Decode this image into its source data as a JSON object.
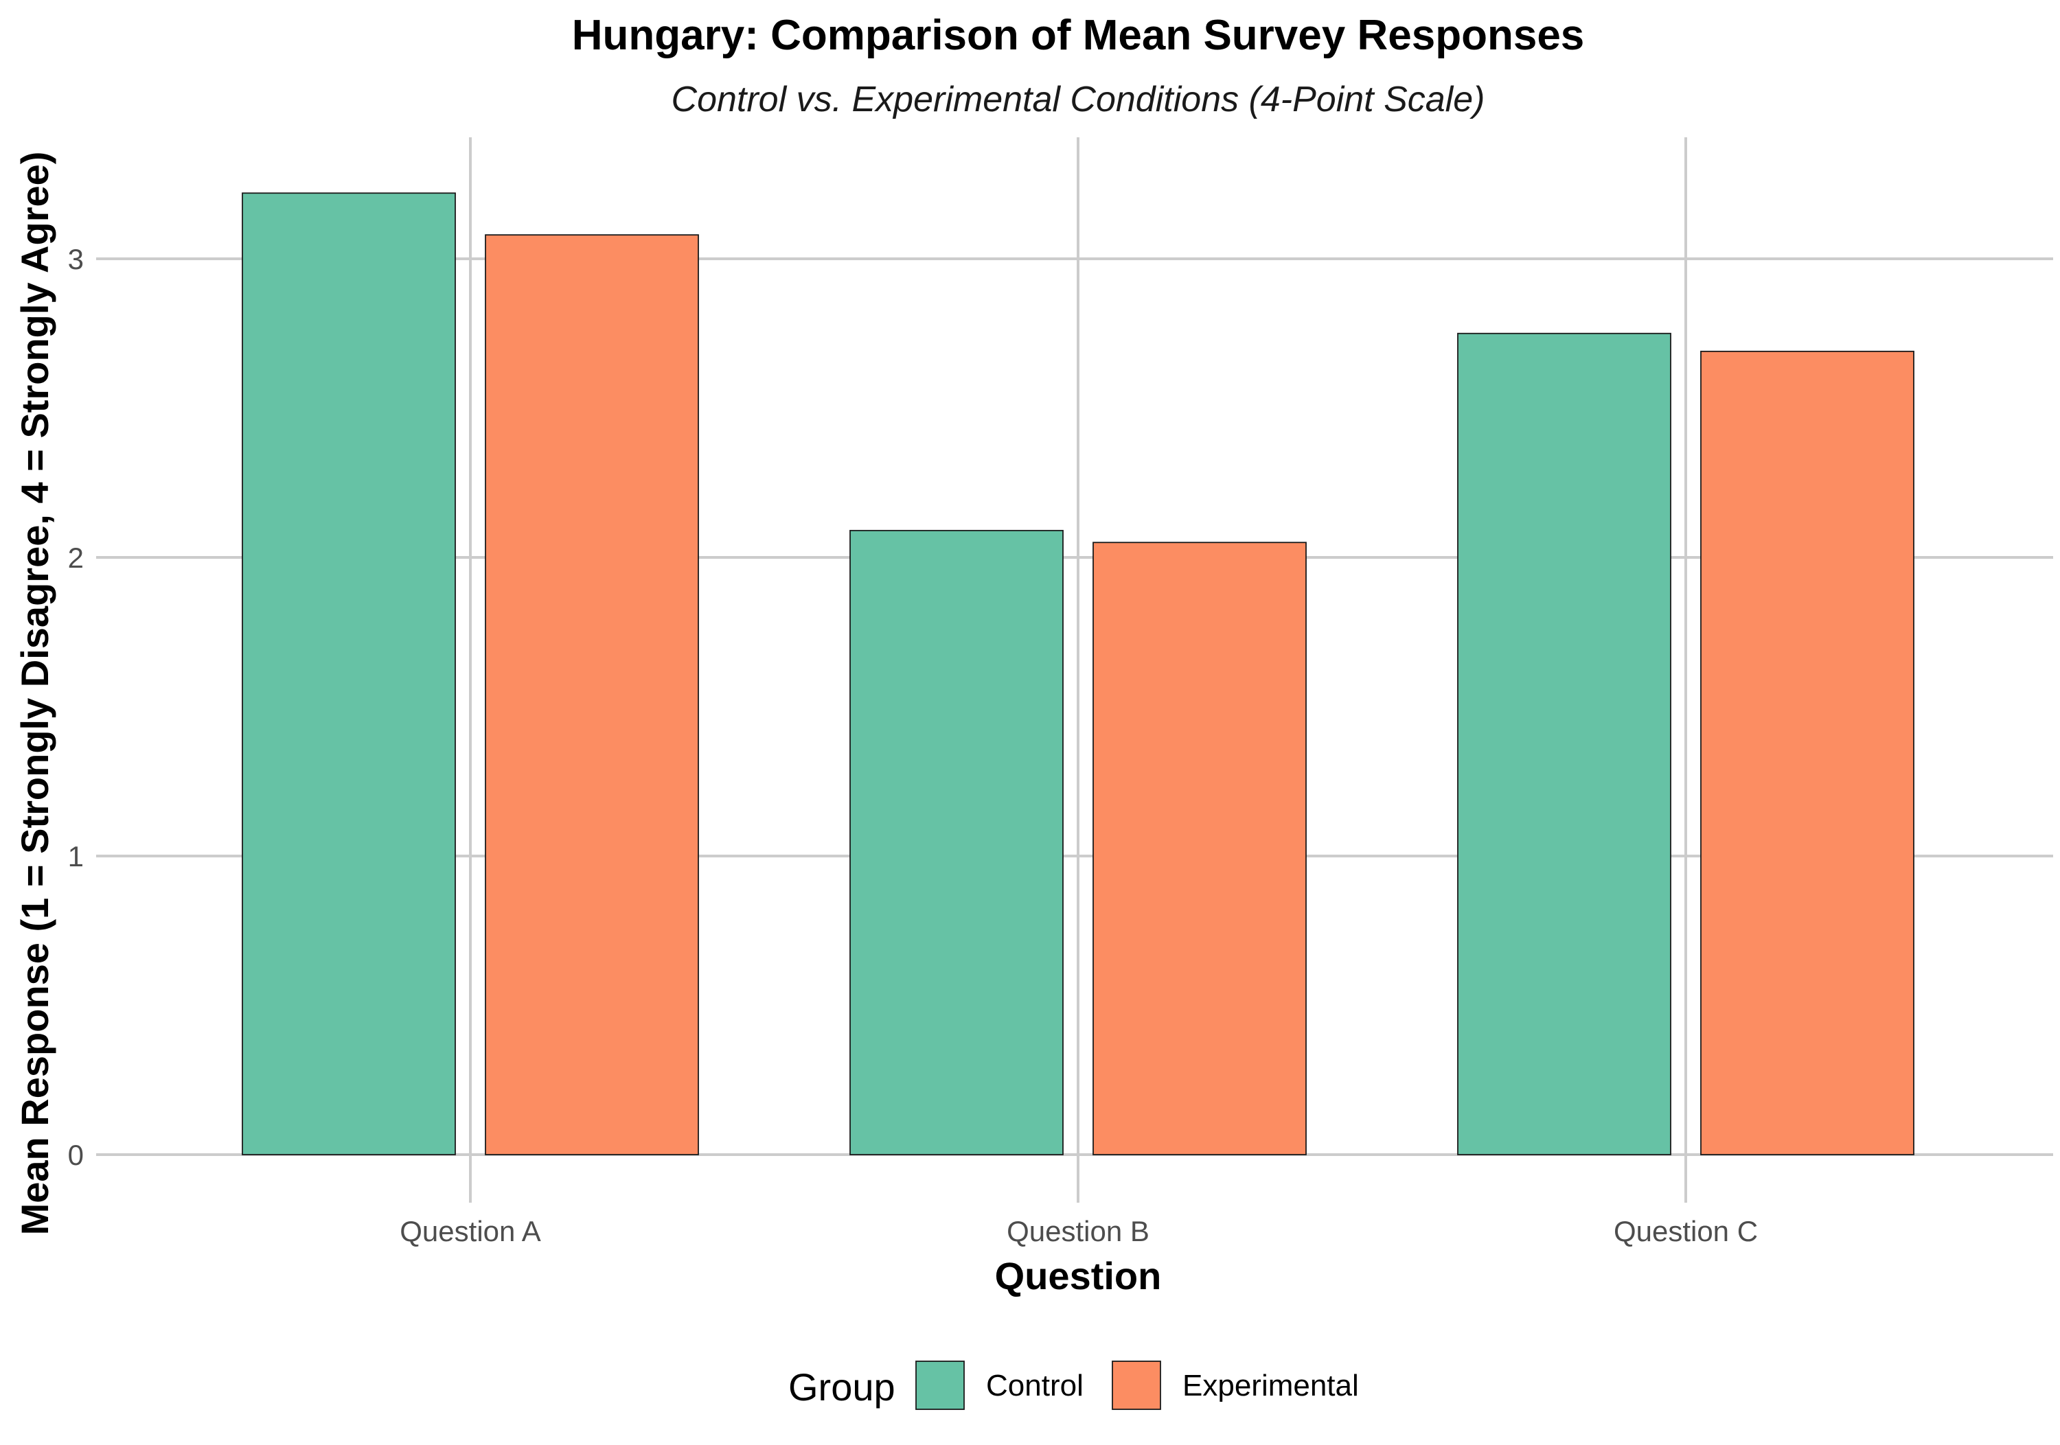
{
  "chart_data": {
    "type": "bar",
    "title": "Hungary: Comparison of Mean Survey Responses",
    "subtitle": "Control vs. Experimental Conditions (4-Point Scale)",
    "xlabel": "Question",
    "ylabel": "Mean Response (1 = Strongly Disagree, 4 = Strongly Agree)",
    "categories": [
      "Question A",
      "Question B",
      "Question C"
    ],
    "series": [
      {
        "name": "Control",
        "color": "#66c2a5",
        "values": [
          3.22,
          2.09,
          2.75
        ]
      },
      {
        "name": "Experimental",
        "color": "#fc8d62",
        "values": [
          3.08,
          2.05,
          2.69
        ]
      }
    ],
    "ylim": [
      0,
      3.45
    ],
    "yticks": [
      0,
      1,
      2,
      3
    ],
    "grid": true,
    "legend": {
      "title": "Group",
      "placement": "bottom"
    }
  }
}
